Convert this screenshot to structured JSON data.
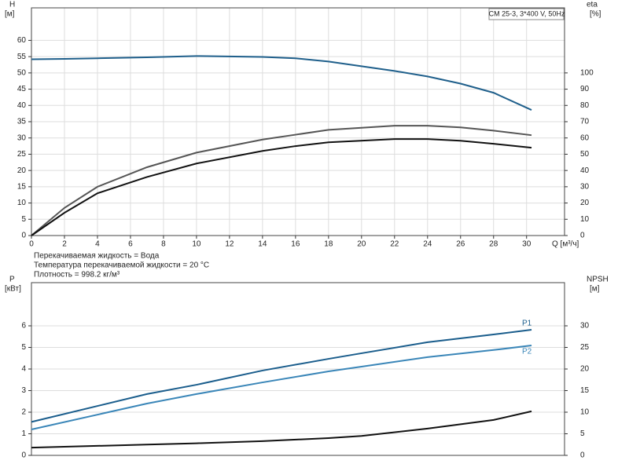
{
  "chart_data": [
    {
      "type": "line",
      "title": "CM 25-3, 3*400 V, 50Hz",
      "ylabel": "H",
      "ylabel_unit": "[м]",
      "y2label": "eta",
      "y2label_unit": "[%]",
      "xlabel": "Q [м³/ч]",
      "x": [
        0,
        2,
        4,
        7,
        10,
        14,
        16,
        18,
        22,
        24,
        26,
        28,
        30.3
      ],
      "xlim": [
        0,
        32.3
      ],
      "xticks": [
        0,
        2,
        4,
        6,
        8,
        10,
        12,
        14,
        16,
        18,
        20,
        22,
        24,
        26,
        28,
        30
      ],
      "ylim": [
        0,
        70
      ],
      "yticks": [
        0,
        5,
        10,
        15,
        20,
        25,
        30,
        35,
        40,
        45,
        50,
        55,
        60
      ],
      "y2lim": [
        0,
        140
      ],
      "y2ticks": [
        0,
        10,
        20,
        30,
        40,
        50,
        60,
        70,
        80,
        90,
        100
      ],
      "grid": true,
      "series": [
        {
          "color": "#1f5f8b",
          "values": [
            54.2,
            54.3,
            54.5,
            54.8,
            55.2,
            54.9,
            54.5,
            53.5,
            50.6,
            48.9,
            46.7,
            43.9,
            38.6
          ]
        },
        {
          "color": "#555555",
          "axis": "y2",
          "values": [
            0,
            17,
            30,
            42,
            51,
            59,
            62,
            65,
            67.5,
            67.5,
            66.5,
            64.5,
            61.7
          ]
        },
        {
          "color": "#111111",
          "axis": "y2",
          "values": [
            0,
            14,
            26,
            36,
            44.3,
            52,
            55,
            57.3,
            59.3,
            59.3,
            58.3,
            56.4,
            54
          ]
        }
      ],
      "annotations": [
        "Перекачиваемая жидкость = Вода",
        "Температура перекачиваемой жидкости = 20 °C",
        "Плотность = 998.2 кг/м³"
      ]
    },
    {
      "type": "line",
      "ylabel": "P",
      "ylabel_unit": "[кВт]",
      "y2label": "NPSH",
      "y2label_unit": "[м]",
      "x": [
        0,
        7,
        10,
        14,
        18,
        20,
        24,
        28,
        30.3
      ],
      "xlim": [
        0,
        32.3
      ],
      "ylim": [
        0,
        8
      ],
      "yticks": [
        0,
        1,
        2,
        3,
        4,
        5,
        6
      ],
      "y2lim": [
        0,
        40
      ],
      "y2ticks": [
        0,
        5,
        10,
        15,
        20,
        25,
        30
      ],
      "grid": true,
      "series_labels": true,
      "series": [
        {
          "name": "P1",
          "color": "#1a5d8c",
          "values": [
            1.55,
            2.84,
            3.27,
            3.93,
            4.47,
            4.73,
            5.24,
            5.6,
            5.82
          ]
        },
        {
          "name": "P2",
          "color": "#3a86b8",
          "values": [
            1.2,
            2.4,
            2.84,
            3.38,
            3.89,
            4.11,
            4.55,
            4.88,
            5.09
          ]
        },
        {
          "color": "#111111",
          "axis": "y2",
          "values": [
            1.8,
            2.5,
            2.8,
            3.3,
            4,
            4.5,
            6.2,
            8.2,
            10.2
          ]
        }
      ]
    }
  ]
}
